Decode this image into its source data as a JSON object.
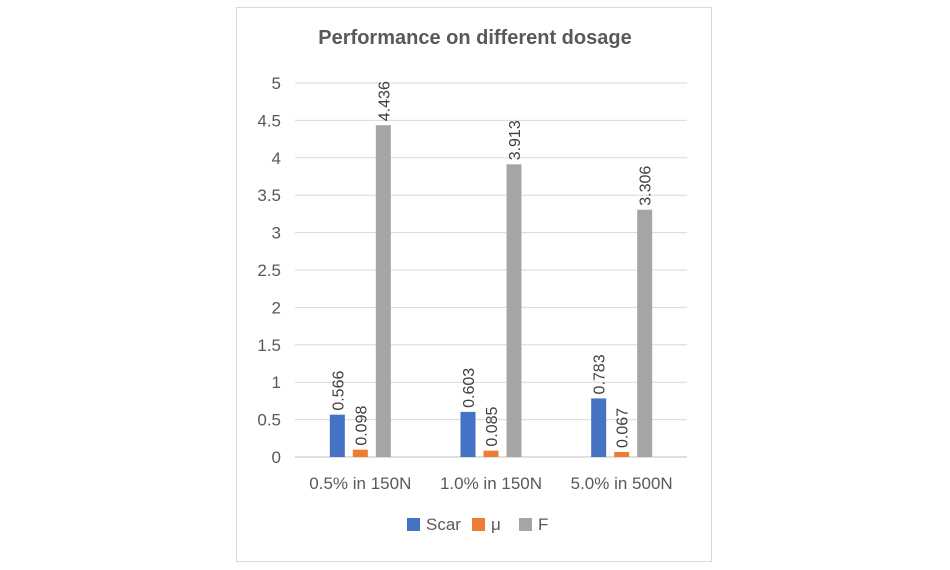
{
  "chart_data": {
    "type": "bar",
    "title": "Performance on different dosage",
    "xlabel": "",
    "ylabel": "",
    "categories": [
      "0.5% in 150N",
      "1.0% in 150N",
      "5.0% in 500N"
    ],
    "series": [
      {
        "name": "Scar",
        "color": "#4472c4",
        "values": [
          0.566,
          0.603,
          0.783
        ]
      },
      {
        "name": "μ",
        "color": "#ed7d31",
        "values": [
          0.098,
          0.085,
          0.067
        ]
      },
      {
        "name": "F",
        "color": "#a5a5a5",
        "values": [
          4.436,
          3.913,
          3.306
        ]
      }
    ],
    "data_labels": [
      [
        "0.566",
        "0.603",
        "0.783"
      ],
      [
        "0.098",
        "0.085",
        "0.067"
      ],
      [
        "4.436",
        "3.913",
        "3.306"
      ]
    ],
    "yticks": [
      "0",
      "0.5",
      "1",
      "1.5",
      "2",
      "2.5",
      "3",
      "3.5",
      "4",
      "4.5",
      "5"
    ],
    "ylim": [
      0,
      5
    ],
    "grid": true,
    "legend_position": "bottom"
  }
}
